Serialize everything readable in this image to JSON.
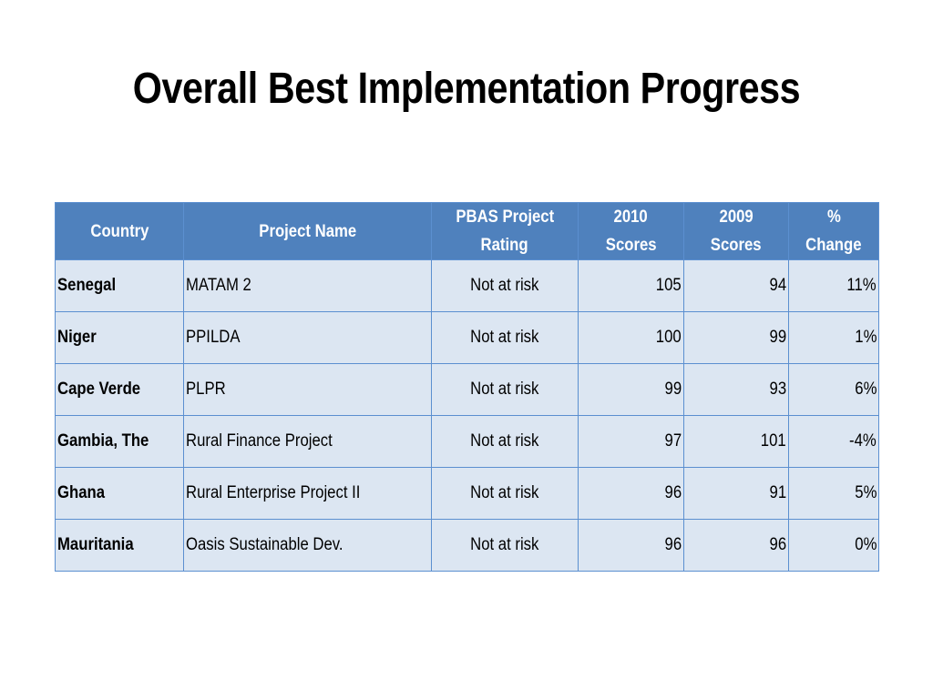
{
  "slide": {
    "title": "Overall Best Implementation Progress"
  },
  "table": {
    "headers": {
      "country": "Country",
      "project_name": "Project Name",
      "rating_line1": "PBAS Project",
      "rating_line2": "Rating",
      "scores2010_line1": "2010",
      "scores2010_line2": "Scores",
      "scores2009_line1": "2009",
      "scores2009_line2": "Scores",
      "change_line1": "%",
      "change_line2": "Change"
    },
    "rows": [
      {
        "country": "Senegal",
        "project": "MATAM 2",
        "rating": "Not at risk",
        "scores_2010": "105",
        "scores_2009": "94",
        "change": "11%"
      },
      {
        "country": "Niger",
        "project": "PPILDA",
        "rating": "Not at risk",
        "scores_2010": "100",
        "scores_2009": "99",
        "change": "1%"
      },
      {
        "country": "Cape Verde",
        "project": "PLPR",
        "rating": "Not at risk",
        "scores_2010": "99",
        "scores_2009": "93",
        "change": "6%"
      },
      {
        "country": "Gambia, The",
        "project": "Rural Finance Project",
        "rating": "Not at risk",
        "scores_2010": "97",
        "scores_2009": "101",
        "change": "-4%"
      },
      {
        "country": "Ghana",
        "project": "Rural Enterprise Project II",
        "rating": "Not at risk",
        "scores_2010": "96",
        "scores_2009": "91",
        "change": "5%"
      },
      {
        "country": "Mauritania",
        "project": "Oasis Sustainable Dev.",
        "rating": "Not at risk",
        "scores_2010": "96",
        "scores_2009": "96",
        "change": "0%"
      }
    ]
  },
  "colors": {
    "header_background": "#4f81bd",
    "row_background": "#dce6f2",
    "border": "#5b8fd0"
  }
}
